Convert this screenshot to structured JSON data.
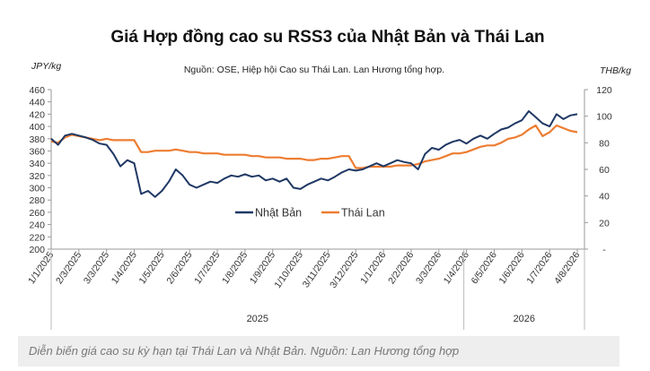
{
  "chart_data": {
    "type": "line",
    "title": "Giá Hợp đồng cao su RSS3 của Nhật Bản và Thái Lan",
    "subtitle": "Nguồn: OSE, Hiệp hội Cao su Thái Lan. Lan Hương tổng hợp.",
    "y_label": "JPY/kg",
    "y2_label": "THB/kg",
    "categories": [
      "1/1/2025",
      null,
      null,
      null,
      "2/3/2025",
      null,
      null,
      null,
      "3/3/2025",
      null,
      null,
      null,
      "1/4/2025",
      null,
      null,
      null,
      "1/5/2025",
      null,
      null,
      null,
      "2/6/2025",
      null,
      null,
      null,
      "1/7/2025",
      null,
      null,
      null,
      "1/8/2025",
      null,
      null,
      null,
      "1/9/2025",
      null,
      null,
      null,
      "1/10/2025",
      null,
      null,
      null,
      "3/11/2025",
      null,
      null,
      null,
      "3/12/2025",
      null,
      null,
      null,
      "1/1/2026",
      null,
      null,
      null,
      "2/2/2026",
      null,
      null,
      null,
      "3/3/2026",
      null,
      null,
      null,
      "1/4/2026",
      null,
      null,
      null,
      "6/5/2026",
      null,
      null,
      null,
      "1/6/2026",
      null,
      null,
      null,
      "1/7/2026",
      null,
      null,
      null,
      "4/8/2026"
    ],
    "x_groups": [
      "2025",
      "2026"
    ],
    "series": [
      {
        "name": "Nhật Bản",
        "color": "#1f3864",
        "axis": "y",
        "values": [
          380,
          370,
          385,
          388,
          385,
          382,
          378,
          372,
          370,
          355,
          335,
          345,
          340,
          290,
          295,
          285,
          295,
          310,
          330,
          320,
          305,
          300,
          305,
          310,
          308,
          315,
          320,
          318,
          322,
          318,
          320,
          312,
          315,
          310,
          315,
          300,
          298,
          305,
          310,
          315,
          312,
          318,
          325,
          330,
          328,
          330,
          335,
          340,
          335,
          340,
          345,
          342,
          340,
          330,
          355,
          365,
          362,
          370,
          375,
          378,
          372,
          380,
          385,
          380,
          388,
          395,
          398,
          405,
          410,
          425,
          415,
          405,
          400,
          420,
          412,
          418,
          420
        ]
      },
      {
        "name": "Thái Lan",
        "color": "#ed7d31",
        "axis": "y2",
        "values": [
          81,
          80,
          84,
          86,
          85,
          84,
          83,
          82,
          83,
          82,
          82,
          82,
          82,
          73,
          73,
          74,
          74,
          74,
          75,
          74,
          73,
          73,
          72,
          72,
          72,
          71,
          71,
          71,
          71,
          70,
          70,
          69,
          69,
          69,
          68,
          68,
          68,
          67,
          67,
          68,
          68,
          69,
          70,
          70,
          61,
          61,
          62,
          62,
          62,
          62,
          63,
          63,
          63,
          64,
          66,
          67,
          68,
          70,
          72,
          72,
          73,
          75,
          77,
          78,
          78,
          80,
          83,
          84,
          86,
          90,
          93,
          85,
          88,
          93,
          91,
          89,
          88
        ]
      }
    ],
    "ylim": [
      200,
      460
    ],
    "yticks": [
      200,
      220,
      240,
      260,
      280,
      300,
      320,
      340,
      360,
      380,
      400,
      420,
      440,
      460
    ],
    "y2lim": [
      0,
      120
    ],
    "y2ticks": [
      {
        "value": 0,
        "label": "-"
      },
      20,
      40,
      60,
      80,
      100,
      120
    ],
    "legend": "center"
  },
  "caption": "Diễn biến giá cao su kỳ hạn tại Thái Lan và Nhật Bản. Nguồn: Lan Hương tổng hợp"
}
